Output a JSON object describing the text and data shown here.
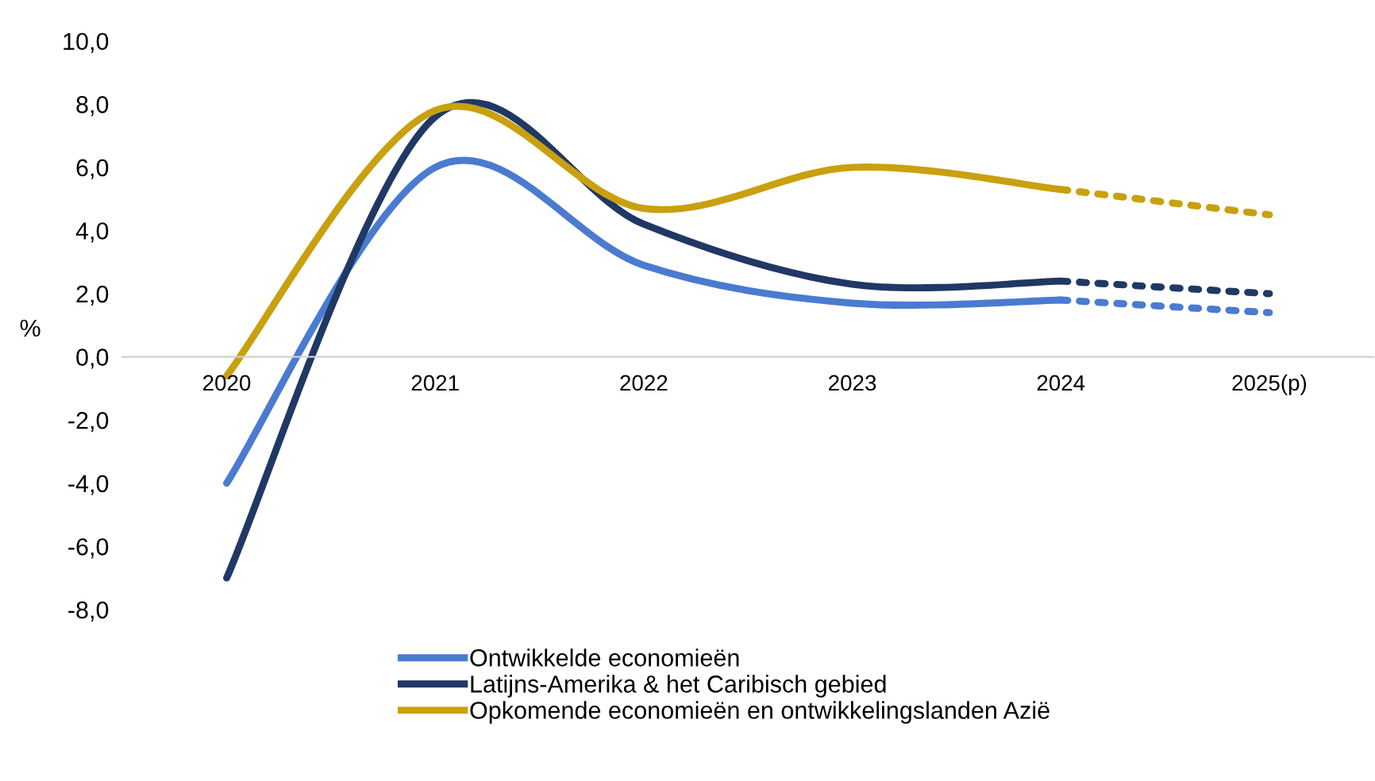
{
  "chart_data": {
    "type": "line",
    "ylabel": "%",
    "categories": [
      "2020",
      "2021",
      "2022",
      "2023",
      "2024",
      "2025(p)"
    ],
    "series": [
      {
        "name": "Ontwikkelde economieën",
        "color": "#4a7bd0",
        "values": [
          -4.0,
          6.0,
          2.9,
          1.7,
          1.8,
          null
        ]
      },
      {
        "name": "Latijns-Amerika & het Caribisch gebied",
        "color": "#203864",
        "values": [
          -7.0,
          7.6,
          4.2,
          2.3,
          2.4,
          null
        ]
      },
      {
        "name": "Opkomende economieën en ontwikkelingslanden Azië",
        "color": "#c9a00e",
        "values": [
          -0.6,
          7.8,
          4.7,
          6.0,
          5.3,
          null
        ]
      },
      {
        "color": "#4a7bd0",
        "line_style": "dotted",
        "values": [
          null,
          null,
          null,
          null,
          1.8,
          1.4
        ]
      },
      {
        "color": "#203864",
        "line_style": "dotted",
        "values": [
          null,
          null,
          null,
          null,
          2.4,
          2.0
        ]
      },
      {
        "color": "#c9a00e",
        "line_style": "dotted",
        "values": [
          null,
          null,
          null,
          null,
          5.3,
          4.5
        ]
      }
    ],
    "ylim": [
      -8,
      10
    ],
    "yticks": [
      {
        "value": -8,
        "label": "-8,0"
      },
      {
        "value": -6,
        "label": "-6,0"
      },
      {
        "value": -4,
        "label": "-4,0"
      },
      {
        "value": -2,
        "label": "-2,0"
      },
      {
        "value": 0,
        "label": "0,0"
      },
      {
        "value": 2,
        "label": "2,0"
      },
      {
        "value": 4,
        "label": "4,0"
      },
      {
        "value": 6,
        "label": "6,0"
      },
      {
        "value": 8,
        "label": "8,0"
      },
      {
        "value": 10,
        "label": "10,0"
      }
    ],
    "grid": false,
    "legend": "bottom",
    "marker": "none"
  }
}
